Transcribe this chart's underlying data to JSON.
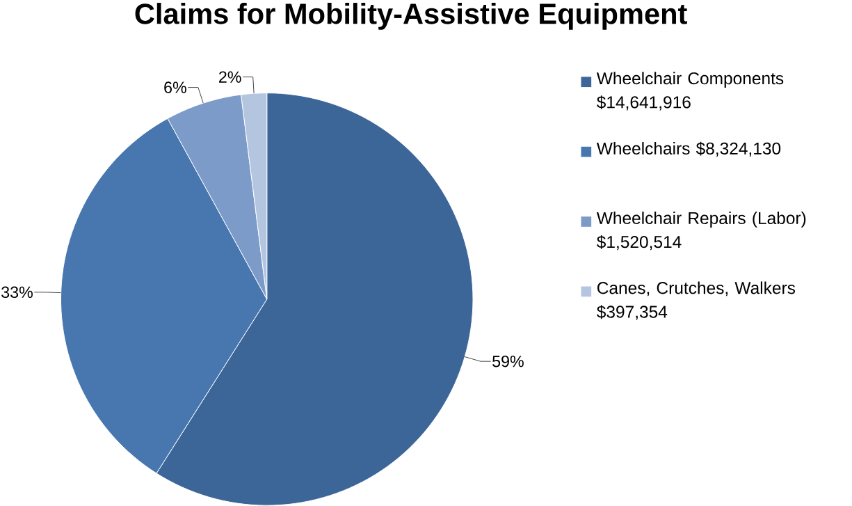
{
  "chart_data": {
    "type": "pie",
    "title": "Claims for Mobility-Assistive Equipment",
    "categories": [
      "Wheelchair Components $14,641,916",
      "Wheelchairs $8,324,130",
      "Wheelchair Repairs (Labor) $1,520,514",
      "Canes, Crutches, Walkers $397,354"
    ],
    "values": [
      59,
      33,
      6,
      2
    ],
    "value_labels": [
      "59%",
      "33%",
      "6%",
      "2%"
    ],
    "colors": [
      "#3d6698",
      "#4877b0",
      "#7d9bc8",
      "#b4c5e0"
    ],
    "legend": "right"
  }
}
